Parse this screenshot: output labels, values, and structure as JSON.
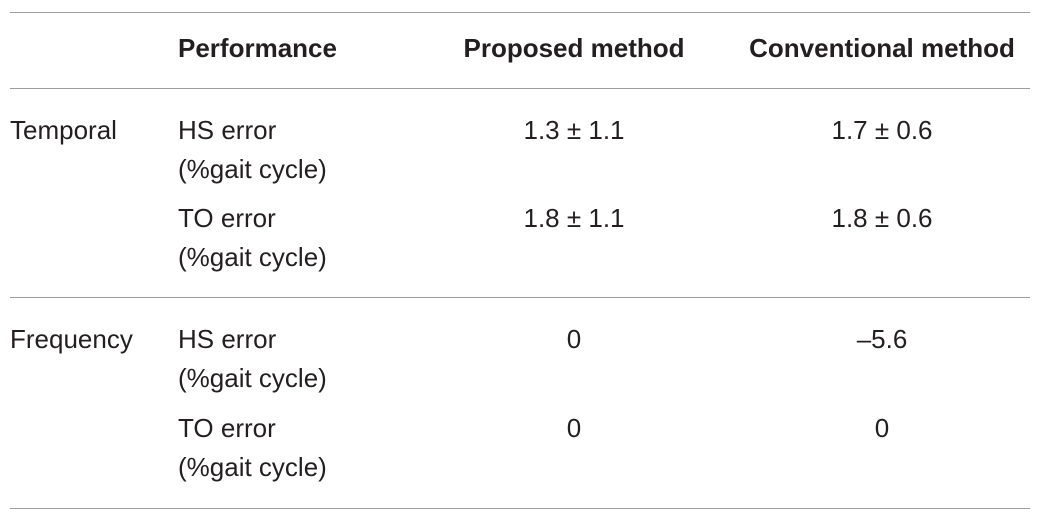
{
  "header": {
    "col_category": "",
    "col_performance": "Performance",
    "col_proposed": "Proposed method",
    "col_conventional": "Conventional method"
  },
  "groups": [
    {
      "category": "Temporal",
      "rows": [
        {
          "metric": "HS error",
          "unit": "(%gait cycle)",
          "proposed": "1.3 ± 1.1",
          "conventional": "1.7 ± 0.6"
        },
        {
          "metric": "TO error",
          "unit": "(%gait cycle)",
          "proposed": "1.8 ± 1.1",
          "conventional": "1.8 ± 0.6"
        }
      ]
    },
    {
      "category": "Frequency",
      "rows": [
        {
          "metric": "HS error",
          "unit": "(%gait cycle)",
          "proposed": "0",
          "conventional": "–5.6"
        },
        {
          "metric": "TO error",
          "unit": "(%gait cycle)",
          "proposed": "0",
          "conventional": "0"
        }
      ]
    }
  ]
}
